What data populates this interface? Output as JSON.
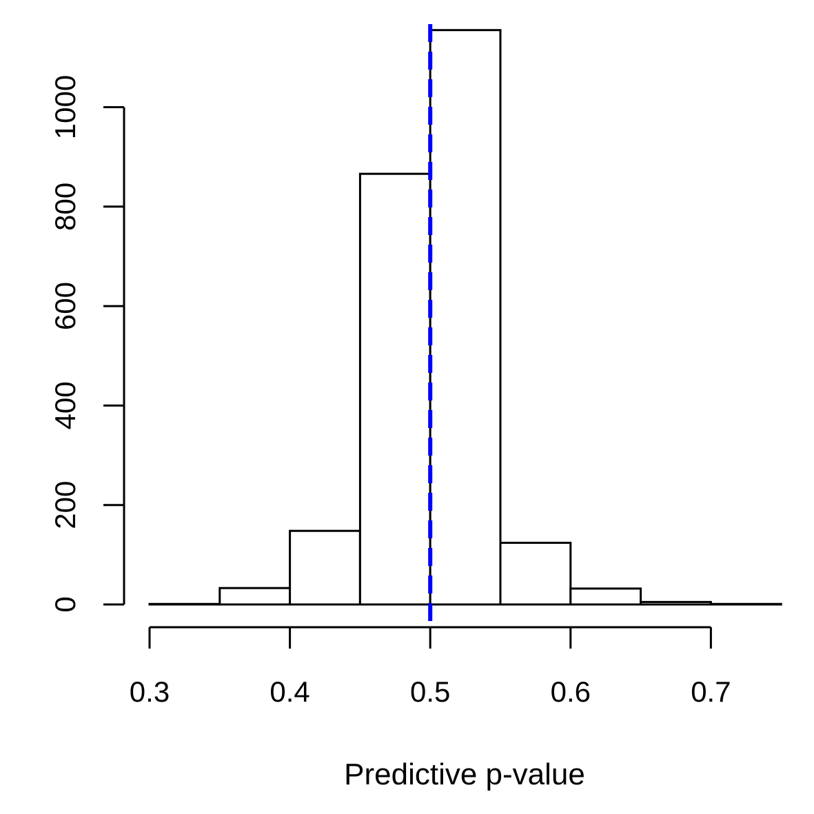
{
  "chart_data": {
    "type": "bar",
    "subtype": "histogram",
    "title": "",
    "xlabel": "Predictive p-value",
    "ylabel": "",
    "bins": [
      {
        "x0": 0.3,
        "x1": 0.35,
        "count": 1
      },
      {
        "x0": 0.35,
        "x1": 0.4,
        "count": 33
      },
      {
        "x0": 0.4,
        "x1": 0.45,
        "count": 148
      },
      {
        "x0": 0.45,
        "x1": 0.5,
        "count": 866
      },
      {
        "x0": 0.5,
        "x1": 0.55,
        "count": 1155
      },
      {
        "x0": 0.55,
        "x1": 0.6,
        "count": 124
      },
      {
        "x0": 0.6,
        "x1": 0.65,
        "count": 32
      },
      {
        "x0": 0.65,
        "x1": 0.7,
        "count": 5
      },
      {
        "x0": 0.7,
        "x1": 0.75,
        "count": 1
      }
    ],
    "x_ticks": [
      {
        "value": 0.3,
        "label": "0.3"
      },
      {
        "value": 0.4,
        "label": "0.4"
      },
      {
        "value": 0.5,
        "label": "0.5"
      },
      {
        "value": 0.6,
        "label": "0.6"
      },
      {
        "value": 0.7,
        "label": "0.7"
      }
    ],
    "y_ticks": [
      {
        "value": 0,
        "label": "0"
      },
      {
        "value": 200,
        "label": "200"
      },
      {
        "value": 400,
        "label": "400"
      },
      {
        "value": 600,
        "label": "600"
      },
      {
        "value": 800,
        "label": "800"
      },
      {
        "value": 1000,
        "label": "1000"
      }
    ],
    "xlim": [
      0.3,
      0.75
    ],
    "ylim": [
      0,
      1155
    ],
    "reference_line": {
      "x": 0.5,
      "color": "#0000ff",
      "style": "dashed"
    },
    "grid": false,
    "bar_fill": "#ffffff",
    "bar_stroke": "#000000"
  }
}
